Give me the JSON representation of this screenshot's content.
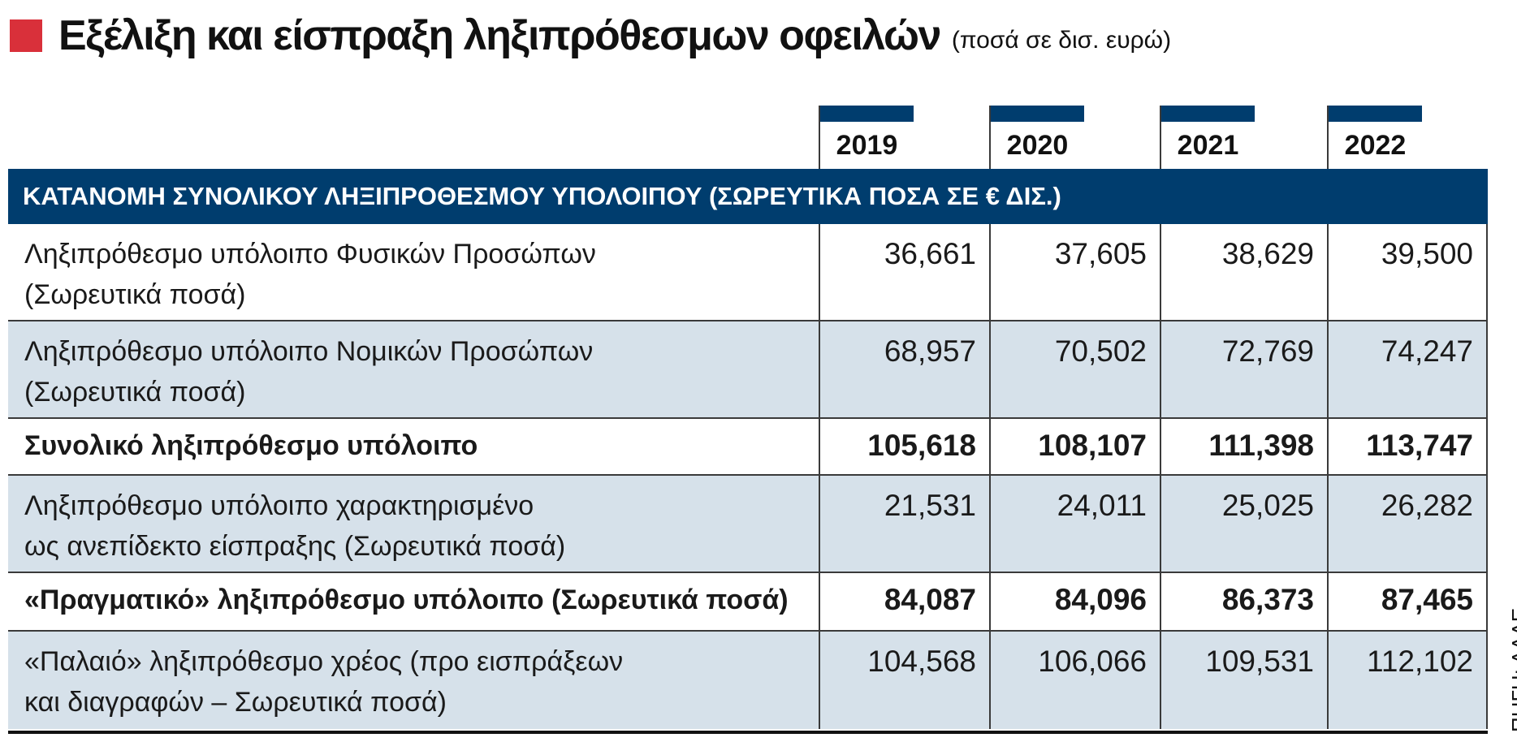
{
  "title": {
    "main": "Εξέλιξη και είσπραξη ληξιπρόθεσμων οφειλών",
    "subtitle": "(ποσά σε δισ. ευρώ)"
  },
  "colors": {
    "accent_square": "#d9303a",
    "header_band": "#003d6e",
    "row_shade": "#d6e1ea"
  },
  "years": [
    "2019",
    "2020",
    "2021",
    "2022"
  ],
  "section_header": "ΚΑΤΑΝΟΜΗ ΣΥΝΟΛΙΚΟΥ ΛΗΞΙΠΡΟΘΕΣΜΟΥ ΥΠΟΛΟΙΠΟΥ (ΣΩΡΕΥΤΙΚΑ ΠΟΣΑ ΣΕ € ΔΙΣ.)",
  "rows": [
    {
      "label_line1": "Ληξιπρόθεσμο υπόλοιπο Φυσικών Προσώπων",
      "label_line2": "(Σωρευτικά ποσά)",
      "values": [
        "36,661",
        "37,605",
        "38,629",
        "39,500"
      ]
    },
    {
      "label_line1": "Ληξιπρόθεσμο υπόλοιπο Νομικών Προσώπων",
      "label_line2": "(Σωρευτικά ποσά)",
      "values": [
        "68,957",
        "70,502",
        "72,769",
        "74,247"
      ]
    },
    {
      "label_line1": "Συνολικό ληξιπρόθεσμο υπόλοιπο",
      "label_line2": "",
      "values": [
        "105,618",
        "108,107",
        "111,398",
        "113,747"
      ]
    },
    {
      "label_line1": "Ληξιπρόθεσμο υπόλοιπο χαρακτηρισμένο",
      "label_line2": "ως ανεπίδεκτο είσπραξης (Σωρευτικά ποσά)",
      "values": [
        "21,531",
        "24,011",
        "25,025",
        "26,282"
      ]
    },
    {
      "label_line1": "«Πραγματικό» ληξιπρόθεσμο υπόλοιπο (Σωρευτικά ποσά)",
      "label_line2": "",
      "values": [
        "84,087",
        "84,096",
        "86,373",
        "87,465"
      ]
    },
    {
      "label_line1": "«Παλαιό» ληξιπρόθεσμο χρέος (προ εισπράξεων",
      "label_line2": "και διαγραφών – Σωρευτικά ποσά)",
      "values": [
        "104,568",
        "106,066",
        "109,531",
        "112,102"
      ]
    }
  ],
  "source": "ΠΗΓΗ: ΑΑΔΕ"
}
